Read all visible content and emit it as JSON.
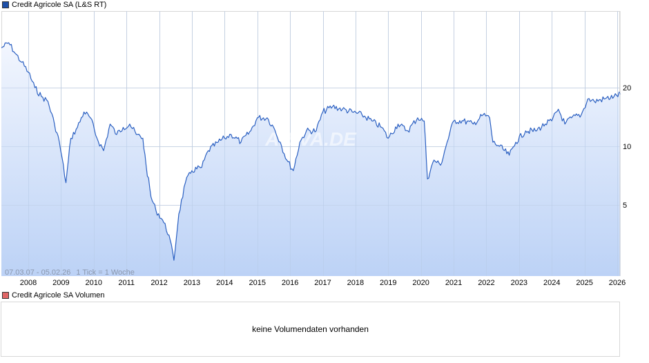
{
  "price_chart": {
    "legend_label": "Credit Agricole SA (L&S RT)",
    "legend_color": "#1d4fa8",
    "line_color": "#2a5fc1",
    "fill_top_color": "#f2f6fe",
    "fill_bottom_color": "#bcd2f6",
    "date_range_label": "07.03.07 - 05.02.26",
    "tick_label": "1 Tick = 1 Woche",
    "watermark": "ARIVA.DE"
  },
  "volume_chart": {
    "legend_label": "Credit Agricole SA Volumen",
    "legend_color": "#e06666",
    "empty_message": "keine Volumendaten vorhanden"
  },
  "chart_data": {
    "type": "line",
    "title": "Credit Agricole SA (L&S RT)",
    "xlabel": "",
    "ylabel": "",
    "y_scale": "log",
    "y_ticks": [
      5,
      10,
      20
    ],
    "y_tick_labels": [
      "5",
      "10",
      "20"
    ],
    "ylim": [
      2.2,
      42
    ],
    "x_tick_labels": [
      "2008",
      "2009",
      "2010",
      "2011",
      "2012",
      "2013",
      "2014",
      "2015",
      "2016",
      "2017",
      "2018",
      "2019",
      "2020",
      "2021",
      "2022",
      "2023",
      "2024",
      "2025",
      "2026"
    ],
    "grid": true,
    "legend_position": "top-left",
    "date_range": "07.03.07 - 05.02.26",
    "interval": "1 Tick = 1 Woche",
    "series": [
      {
        "name": "Credit Agricole SA (L&S RT)",
        "x": [
          2007.18,
          2007.4,
          2007.6,
          2007.8,
          2008.0,
          2008.2,
          2008.4,
          2008.6,
          2008.8,
          2008.95,
          2009.15,
          2009.3,
          2009.5,
          2009.7,
          2009.9,
          2010.1,
          2010.3,
          2010.5,
          2010.7,
          2010.9,
          2011.1,
          2011.3,
          2011.5,
          2011.6,
          2011.75,
          2011.9,
          2012.1,
          2012.3,
          2012.45,
          2012.6,
          2012.8,
          2013.0,
          2013.3,
          2013.5,
          2013.8,
          2014.0,
          2014.2,
          2014.5,
          2014.8,
          2015.0,
          2015.3,
          2015.5,
          2015.7,
          2015.9,
          2016.1,
          2016.3,
          2016.5,
          2016.8,
          2017.0,
          2017.3,
          2017.6,
          2017.9,
          2018.2,
          2018.5,
          2018.8,
          2019.0,
          2019.3,
          2019.6,
          2019.9,
          2020.1,
          2020.2,
          2020.4,
          2020.6,
          2020.8,
          2021.0,
          2021.3,
          2021.6,
          2021.9,
          2022.1,
          2022.2,
          2022.4,
          2022.7,
          2022.9,
          2023.2,
          2023.5,
          2023.8,
          2024.0,
          2024.2,
          2024.4,
          2024.6,
          2024.9,
          2025.1,
          2025.3,
          2025.6,
          2025.9,
          2026.1
        ],
        "values": [
          32,
          34,
          30,
          27,
          24,
          20,
          18,
          17,
          13,
          10.5,
          6.5,
          11,
          12.5,
          15,
          14,
          11,
          9.5,
          13,
          11.5,
          12.5,
          13,
          11.5,
          11,
          8,
          5.5,
          4.7,
          4.2,
          3.5,
          2.6,
          4.5,
          6.5,
          7.5,
          7.8,
          9.5,
          10.5,
          11,
          11.5,
          10.5,
          12,
          14,
          14,
          12.5,
          10.5,
          8.5,
          7.5,
          10.5,
          12,
          12,
          15,
          16,
          15.5,
          15,
          14.5,
          13.5,
          12.5,
          11,
          13,
          12,
          14,
          13.5,
          6.8,
          8.5,
          8,
          10.5,
          13.5,
          13.5,
          13,
          14.5,
          14,
          10.5,
          10,
          9,
          10.5,
          12,
          12,
          13,
          13.5,
          15.5,
          13,
          14,
          14.5,
          17.5,
          17,
          17.5,
          18,
          18.5
        ]
      }
    ]
  }
}
